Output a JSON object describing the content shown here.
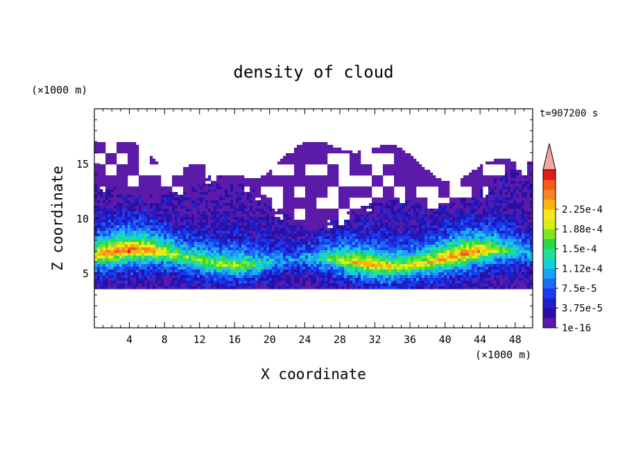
{
  "chart_data": {
    "type": "heatmap",
    "title": "density of cloud",
    "xlabel": "X coordinate",
    "ylabel": "Z coordinate",
    "x_unit": "(×1000 m)",
    "y_unit": "(×1000 m)",
    "time_label": "t=907200 s",
    "xlim": [
      0,
      50
    ],
    "ylim": [
      0,
      20
    ],
    "x_ticks": [
      4,
      8,
      12,
      16,
      20,
      24,
      28,
      32,
      36,
      40,
      44,
      48
    ],
    "y_ticks": [
      5,
      10,
      15
    ],
    "colorbar": {
      "levels": [
        "1e-16",
        "3.75e-5",
        "7.5e-5",
        "1.12e-4",
        "1.5e-4",
        "1.88e-4",
        "2.25e-4"
      ],
      "colors": [
        "#5b1aa8",
        "#2a0fa6",
        "#1d1fc9",
        "#1a3cf0",
        "#1b6cf5",
        "#1ea2f4",
        "#16d0d8",
        "#1fe09a",
        "#2ad84a",
        "#7fe51f",
        "#d6ee18",
        "#f7e81b",
        "#f9b412",
        "#f8861c",
        "#f45a18",
        "#e21b14"
      ],
      "extend_color": "#f5a3a3"
    },
    "field": {
      "cloud_base_km": 3.5,
      "core_center_km": 6.2,
      "peak_density": 0.00023,
      "upper_extent_km": 17.0
    }
  }
}
